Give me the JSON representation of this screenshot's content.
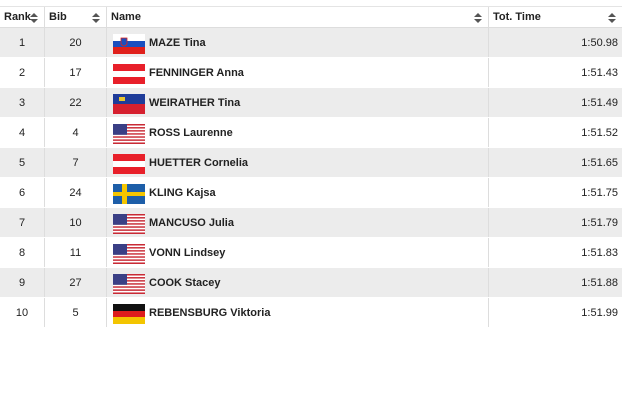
{
  "table": {
    "headers": [
      "Rank",
      "Bib",
      "Name",
      "Tot. Time"
    ],
    "rows": [
      [
        1,
        20,
        "MAZE Tina",
        "1:50.98"
      ],
      [
        2,
        17,
        "FENNINGER Anna",
        "1:51.43"
      ],
      [
        3,
        22,
        "WEIRATHER Tina",
        "1:51.49"
      ],
      [
        4,
        4,
        "ROSS Laurenne",
        "1:51.52"
      ],
      [
        5,
        7,
        "HUETTER Cornelia",
        "1:51.65"
      ],
      [
        6,
        24,
        "KLING Kajsa",
        "1:51.75"
      ],
      [
        7,
        10,
        "MANCUSO Julia",
        "1:51.79"
      ],
      [
        8,
        11,
        "VONN Lindsey",
        "1:51.83"
      ],
      [
        9,
        27,
        "COOK Stacey",
        "1:51.88"
      ],
      [
        10,
        5,
        "REBENSBURG Viktoria",
        "1:51.99"
      ]
    ]
  }
}
